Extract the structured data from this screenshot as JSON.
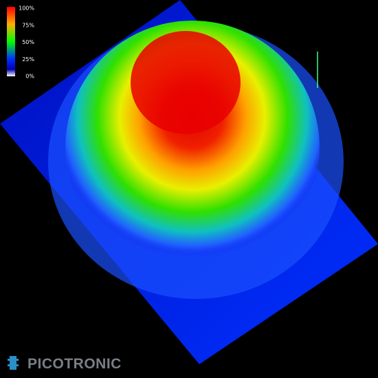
{
  "colorbar": {
    "labels": [
      "100%",
      "75%",
      "50%",
      "25%",
      "0%"
    ]
  },
  "logo": {
    "text": "PICOTRONIC"
  }
}
